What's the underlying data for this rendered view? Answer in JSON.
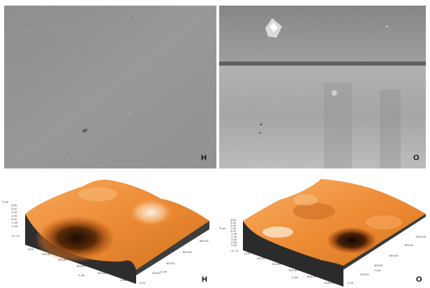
{
  "panels": {
    "sem_left": {
      "label": "H"
    },
    "sem_right": {
      "label": "O"
    },
    "afm_left": {
      "label": "H",
      "z_unit": "Z µm",
      "z_ticks": [
        "4.85",
        "3.00",
        "2.00",
        "1.00",
        "0.00",
        "-1.00",
        "-5.00",
        "-11.13"
      ],
      "x_unit": "X µm",
      "x_ticks": [
        "0.00",
        "200.00",
        "400.00",
        "600.00",
        "800.00",
        "1000.00"
      ],
      "y_unit": "Y µm",
      "y_ticks": [
        "0.00",
        "200.00",
        "400.00",
        "600.00",
        "800.00"
      ]
    },
    "afm_right": {
      "label": "O",
      "z_unit": "Z µm",
      "z_ticks": [
        "4.85",
        "3.00",
        "2.00",
        "1.00",
        "0.00",
        "-1.00",
        "-2.00",
        "-3.00",
        "-4.00",
        "-5.00",
        "-11.13"
      ],
      "x_unit": "X µm",
      "x_ticks": [
        "0.00",
        "200.00",
        "400.00",
        "600.00",
        "800.00",
        "1000.00"
      ],
      "y_unit": "Y µm",
      "y_ticks": [
        "0.00",
        "200.00",
        "400.00",
        "600.00",
        "800.00",
        "1000.00"
      ]
    }
  },
  "colors": {
    "sem_gray": "#8c8c8c",
    "afm_orange": "#f0923a",
    "afm_shadow": "#2b1505",
    "afm_side": "#4a4a4a"
  }
}
